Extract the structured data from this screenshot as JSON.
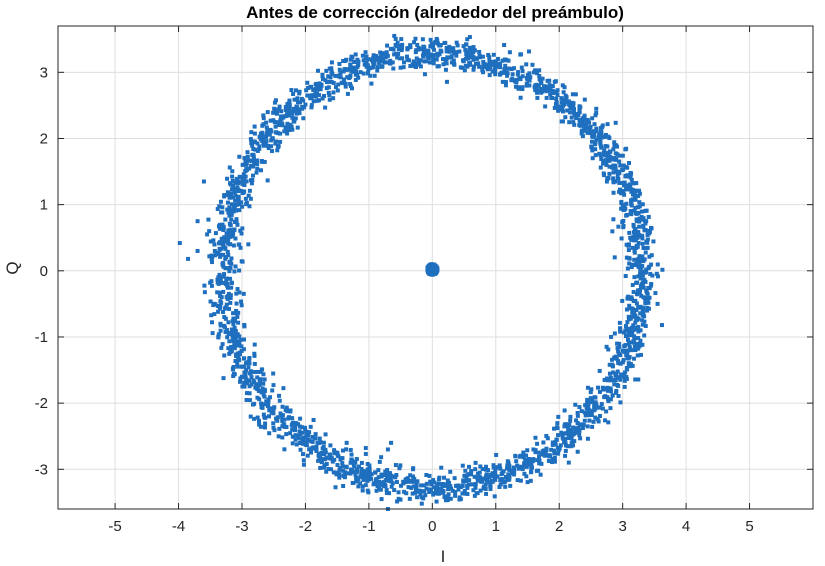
{
  "chart_data": {
    "type": "scatter",
    "title": "Antes de corrección (alrededor del preámbulo)",
    "xlabel": "I",
    "ylabel": "Q",
    "xlim": [
      -5.9,
      6.0
    ],
    "ylim": [
      -3.6,
      3.7
    ],
    "xticks": [
      -5,
      -4,
      -3,
      -2,
      -1,
      0,
      1,
      2,
      3,
      4,
      5
    ],
    "yticks": [
      -3,
      -2,
      -1,
      0,
      1,
      2,
      3
    ],
    "xtick_labels": [
      "-5",
      "-4",
      "-3",
      "-2",
      "-1",
      "0",
      "1",
      "2",
      "3",
      "4",
      "5"
    ],
    "ytick_labels": [
      "-3",
      "-2",
      "-1",
      "0",
      "1",
      "2",
      "3"
    ],
    "grid": true,
    "marker_color": "#1f6fbf",
    "series": [
      {
        "description": "ring",
        "center": [
          0.0,
          0.0
        ],
        "radius": 3.3,
        "spread": 0.12,
        "count": 2600
      },
      {
        "description": "cluster",
        "center": [
          0.0,
          0.02
        ],
        "radius": 0.08,
        "count": 260
      }
    ],
    "outliers": [
      [
        -3.98,
        0.42
      ],
      [
        -3.85,
        0.18
      ],
      [
        -3.6,
        1.35
      ],
      [
        -3.7,
        0.3
      ],
      [
        -3.55,
        0.55
      ],
      [
        -2.9,
        0.4
      ],
      [
        3.62,
        -0.82
      ],
      [
        3.55,
        -0.5
      ],
      [
        3.45,
        -0.2
      ],
      [
        -0.6,
        3.55
      ],
      [
        0.6,
        3.75
      ],
      [
        0.55,
        3.5
      ],
      [
        -0.7,
        -3.6
      ],
      [
        -0.8,
        -3.45
      ],
      [
        0.45,
        -3.45
      ],
      [
        -1.35,
        -2.6
      ],
      [
        -0.65,
        -2.6
      ],
      [
        -0.7,
        -2.7
      ],
      [
        3.1,
        0.4
      ],
      [
        -3.7,
        0.75
      ]
    ]
  }
}
